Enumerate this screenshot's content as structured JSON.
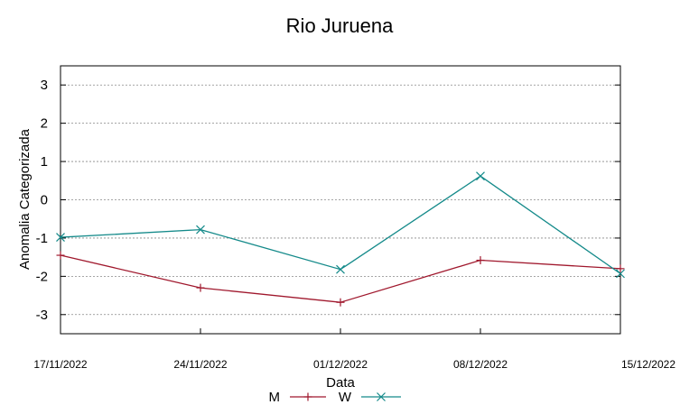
{
  "chart_data": {
    "type": "line",
    "title": "Rio Juruena",
    "xlabel": "Data",
    "ylabel": "Anomalia Categorizada",
    "categories": [
      "17/11/2022",
      "24/11/2022",
      "01/12/2022",
      "08/12/2022",
      "15/12/2022"
    ],
    "yticks": [
      3,
      2,
      1,
      0,
      -1,
      -2,
      -3
    ],
    "ylim": [
      -3.5,
      3.5
    ],
    "grid": true,
    "legend_position": "bottom",
    "series": [
      {
        "name": "M",
        "color": "#a0182d",
        "marker": "plus",
        "values": [
          -1.45,
          -2.3,
          -2.68,
          -1.58,
          -1.8
        ]
      },
      {
        "name": "W",
        "color": "#148a8a",
        "marker": "cross",
        "values": [
          -0.98,
          -0.78,
          -1.82,
          0.62,
          -1.93
        ]
      }
    ]
  }
}
